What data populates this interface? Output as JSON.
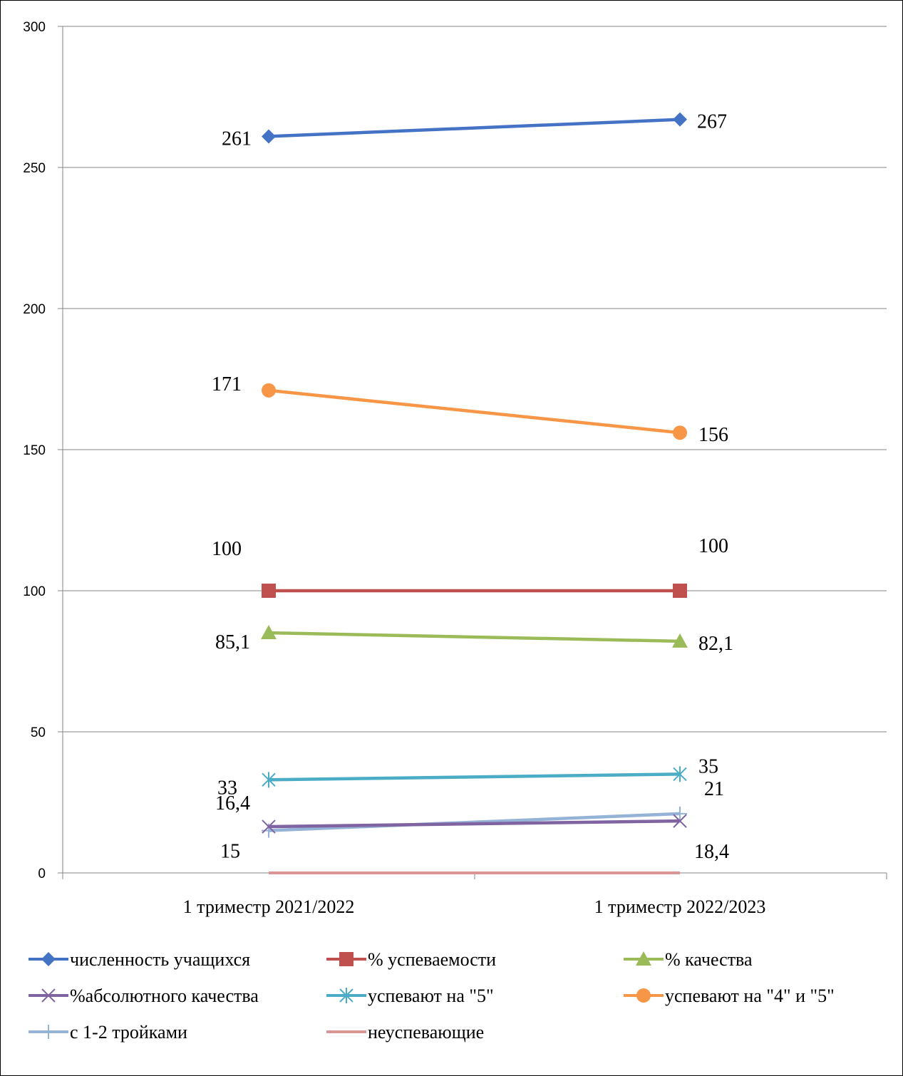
{
  "chart_data": {
    "type": "line",
    "categories": [
      "1 триместр 2021/2022",
      "1 триместр 2022/2023"
    ],
    "ylim": [
      0,
      300
    ],
    "yticks": [
      0,
      50,
      100,
      150,
      200,
      250,
      300
    ],
    "grid": true,
    "legend_position": "bottom",
    "series": [
      {
        "name": "численность учащихся",
        "values": [
          261,
          267
        ],
        "labels": [
          "261",
          "267"
        ],
        "color": "#4472C4",
        "marker": "diamond"
      },
      {
        "name": "% успеваемости",
        "values": [
          100,
          100
        ],
        "labels": [
          "100",
          "100"
        ],
        "color": "#C0504D",
        "marker": "square"
      },
      {
        "name": "% качества",
        "values": [
          85.1,
          82.1
        ],
        "labels": [
          "85,1",
          "82,1"
        ],
        "color": "#9BBB59",
        "marker": "triangle"
      },
      {
        "name": "%абсолютного качества",
        "values": [
          16.4,
          18.4
        ],
        "labels": [
          "16,4",
          "18,4"
        ],
        "color": "#8064A2",
        "marker": "x"
      },
      {
        "name": "успевают на \"5\"",
        "values": [
          33,
          35
        ],
        "labels": [
          "33",
          "35"
        ],
        "color": "#4BACC6",
        "marker": "star"
      },
      {
        "name": "успевают на \"4\" и \"5\"",
        "values": [
          171,
          156
        ],
        "labels": [
          "171",
          "156"
        ],
        "color": "#F79646",
        "marker": "circle"
      },
      {
        "name": "с 1-2 тройками",
        "values": [
          15,
          21
        ],
        "labels": [
          "15",
          "21"
        ],
        "color": "#95B3D7",
        "marker": "plus"
      },
      {
        "name": "неуспевающие",
        "values": [
          0,
          0
        ],
        "labels": [],
        "color": "#D99694",
        "marker": "none"
      }
    ]
  }
}
